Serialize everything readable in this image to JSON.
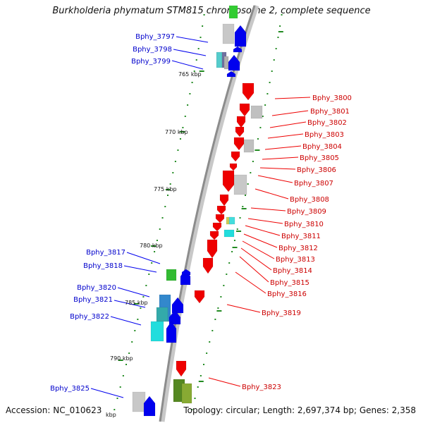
{
  "title": "Burkholderia phymatum STM815 chromosome 2, complete sequence",
  "footer": {
    "accession": "Accession: NC_010623",
    "stats": "Topology: circular; Length: 2,697,374 bp; Genes: 2,358"
  },
  "colors": {
    "minus_strand": "#0000ee",
    "plus_strand": "#ee0000",
    "axis": "#9a9a9a",
    "tick": "#228b22"
  },
  "scale_labels": [
    "765 kbp",
    "770 kbp",
    "775 kbp",
    "780 kbp",
    "785 kbp",
    "790 kbp",
    "kbp"
  ],
  "left_genes": [
    "Bphy_3797",
    "Bphy_3798",
    "Bphy_3799",
    "Bphy_3817",
    "Bphy_3818",
    "Bphy_3820",
    "Bphy_3821",
    "Bphy_3822",
    "Bphy_3825"
  ],
  "right_genes": [
    "Bphy_3800",
    "Bphy_3801",
    "Bphy_3802",
    "Bphy_3803",
    "Bphy_3804",
    "Bphy_3805",
    "Bphy_3806",
    "Bphy_3807",
    "Bphy_3808",
    "Bphy_3809",
    "Bphy_3810",
    "Bphy_3811",
    "Bphy_3812",
    "Bphy_3813",
    "Bphy_3814",
    "Bphy_3815",
    "Bphy_3816",
    "Bphy_3819",
    "Bphy_3823"
  ]
}
